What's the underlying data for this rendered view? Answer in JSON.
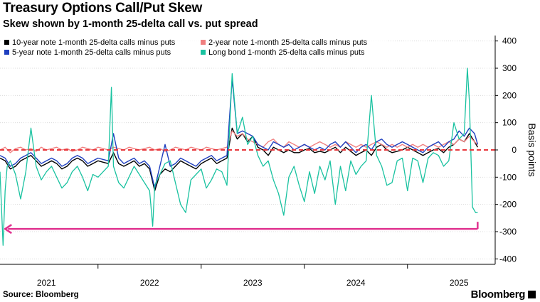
{
  "header": {
    "title": "Treasury Options Call/Put Skew",
    "subtitle": "Skew shown by 1-month 25-delta call vs. put spread"
  },
  "footer": {
    "source": "Source: Bloomberg",
    "brand": "Bloomberg"
  },
  "chart_data": {
    "type": "line",
    "title": "Treasury Options Call/Put Skew",
    "subtitle": "Skew shown by 1-month 25-delta call vs. put spread",
    "xlabel": "",
    "ylabel": "Basis points",
    "xlim": [
      2020.55,
      2025.35
    ],
    "ylim": [
      -420,
      420
    ],
    "y_ticks": [
      400,
      300,
      200,
      100,
      0,
      -100,
      -200,
      -300,
      -400
    ],
    "x_ticks": [
      {
        "label": "2021",
        "value": 2021.0
      },
      {
        "label": "2022",
        "value": 2022.0
      },
      {
        "label": "2023",
        "value": 2023.0
      },
      {
        "label": "2024",
        "value": 2024.0
      },
      {
        "label": "2025",
        "value": 2025.0
      }
    ],
    "x_boundaries": [
      2021.5,
      2022.5,
      2023.5,
      2024.5
    ],
    "zero_line": {
      "y": 0,
      "color": "#e8383d",
      "style": "dashed"
    },
    "annotation_arrow": {
      "y": -290,
      "x_start": 2025.18,
      "x_end": 2020.6,
      "color": "#e0318f"
    },
    "legend_position": "top-left",
    "colors": {
      "ten_year": "#000000",
      "two_year": "#f08080",
      "five_year": "#1f3fbf",
      "long_bond": "#19c2a0"
    },
    "series": [
      {
        "name": "10-year note 1-month 25-delta calls minus puts",
        "key": "ten_year",
        "x": [
          2020.55,
          2020.6,
          2020.65,
          2020.7,
          2020.75,
          2020.8,
          2020.85,
          2020.9,
          2020.95,
          2021.0,
          2021.05,
          2021.1,
          2021.15,
          2021.2,
          2021.25,
          2021.3,
          2021.35,
          2021.4,
          2021.45,
          2021.5,
          2021.55,
          2021.6,
          2021.65,
          2021.7,
          2021.75,
          2021.8,
          2021.85,
          2021.9,
          2021.95,
          2022.0,
          2022.05,
          2022.1,
          2022.15,
          2022.2,
          2022.25,
          2022.3,
          2022.35,
          2022.4,
          2022.45,
          2022.5,
          2022.55,
          2022.6,
          2022.65,
          2022.7,
          2022.75,
          2022.8,
          2022.85,
          2022.9,
          2022.95,
          2023.0,
          2023.05,
          2023.1,
          2023.15,
          2023.2,
          2023.25,
          2023.3,
          2023.35,
          2023.4,
          2023.45,
          2023.5,
          2023.55,
          2023.6,
          2023.65,
          2023.7,
          2023.75,
          2023.8,
          2023.85,
          2023.9,
          2023.95,
          2024.0,
          2024.05,
          2024.1,
          2024.15,
          2024.2,
          2024.25,
          2024.3,
          2024.35,
          2024.4,
          2024.45,
          2024.5,
          2024.55,
          2024.6,
          2024.65,
          2024.7,
          2024.75,
          2024.8,
          2024.85,
          2024.9,
          2024.95,
          2025.0,
          2025.05,
          2025.1,
          2025.15,
          2025.18
        ],
        "y": [
          -30,
          -40,
          -70,
          -60,
          -40,
          -30,
          -20,
          -40,
          -60,
          -50,
          -40,
          -50,
          -70,
          -60,
          -40,
          -30,
          -40,
          -60,
          -50,
          -40,
          -45,
          -50,
          -10,
          -50,
          -60,
          -50,
          -40,
          -60,
          -50,
          -70,
          -150,
          -90,
          -70,
          -80,
          -60,
          -40,
          -50,
          -60,
          -70,
          -50,
          -40,
          -30,
          -50,
          -40,
          -30,
          80,
          40,
          60,
          30,
          50,
          10,
          0,
          -20,
          10,
          0,
          -10,
          0,
          -10,
          -10,
          0,
          5,
          -10,
          -5,
          -10,
          0,
          10,
          -10,
          10,
          -5,
          -20,
          -10,
          0,
          -20,
          10,
          20,
          0,
          -10,
          -5,
          0,
          10,
          0,
          -10,
          -20,
          -10,
          0,
          5,
          -10,
          10,
          20,
          40,
          30,
          60,
          30,
          10
        ]
      },
      {
        "name": "2-year note 1-month 25-delta calls minus puts",
        "key": "two_year",
        "x": [
          2020.55,
          2020.6,
          2020.65,
          2020.7,
          2020.75,
          2020.8,
          2020.85,
          2020.9,
          2020.95,
          2021.0,
          2021.05,
          2021.1,
          2021.15,
          2021.2,
          2021.25,
          2021.3,
          2021.35,
          2021.4,
          2021.45,
          2021.5,
          2021.55,
          2021.6,
          2021.65,
          2021.7,
          2021.75,
          2021.8,
          2021.85,
          2021.9,
          2021.95,
          2022.0,
          2022.05,
          2022.1,
          2022.15,
          2022.2,
          2022.25,
          2022.3,
          2022.35,
          2022.4,
          2022.45,
          2022.5,
          2022.55,
          2022.6,
          2022.65,
          2022.7,
          2022.75,
          2022.8,
          2022.85,
          2022.9,
          2022.95,
          2023.0,
          2023.05,
          2023.1,
          2023.15,
          2023.2,
          2023.25,
          2023.3,
          2023.35,
          2023.4,
          2023.45,
          2023.5,
          2023.55,
          2023.6,
          2023.65,
          2023.7,
          2023.75,
          2023.8,
          2023.85,
          2023.9,
          2023.95,
          2024.0,
          2024.05,
          2024.1,
          2024.15,
          2024.2,
          2024.25,
          2024.3,
          2024.35,
          2024.4,
          2024.45,
          2024.5,
          2024.55,
          2024.6,
          2024.65,
          2024.7,
          2024.75,
          2024.8,
          2024.85,
          2024.9,
          2024.95,
          2025.0,
          2025.05,
          2025.1,
          2025.15,
          2025.18
        ],
        "y": [
          0,
          10,
          -10,
          5,
          10,
          0,
          5,
          -5,
          10,
          0,
          5,
          10,
          0,
          5,
          -5,
          0,
          10,
          5,
          0,
          10,
          5,
          0,
          10,
          5,
          0,
          10,
          5,
          0,
          5,
          10,
          0,
          5,
          -5,
          0,
          10,
          5,
          0,
          10,
          5,
          0,
          10,
          5,
          0,
          5,
          10,
          70,
          50,
          60,
          40,
          30,
          20,
          10,
          30,
          40,
          20,
          10,
          30,
          20,
          10,
          20,
          10,
          20,
          30,
          20,
          10,
          20,
          10,
          30,
          20,
          10,
          20,
          10,
          20,
          30,
          20,
          10,
          20,
          10,
          20,
          10,
          20,
          10,
          20,
          10,
          20,
          10,
          20,
          30,
          20,
          40,
          30,
          50,
          30,
          20
        ]
      },
      {
        "name": "5-year note 1-month 25-delta calls minus puts",
        "key": "five_year",
        "x": [
          2020.55,
          2020.6,
          2020.65,
          2020.7,
          2020.75,
          2020.8,
          2020.85,
          2020.9,
          2020.95,
          2021.0,
          2021.05,
          2021.1,
          2021.15,
          2021.2,
          2021.25,
          2021.3,
          2021.35,
          2021.4,
          2021.45,
          2021.5,
          2021.55,
          2021.6,
          2021.65,
          2021.7,
          2021.75,
          2021.8,
          2021.85,
          2021.9,
          2021.95,
          2022.0,
          2022.05,
          2022.1,
          2022.15,
          2022.2,
          2022.25,
          2022.3,
          2022.35,
          2022.4,
          2022.45,
          2022.5,
          2022.55,
          2022.6,
          2022.65,
          2022.7,
          2022.75,
          2022.8,
          2022.85,
          2022.9,
          2022.95,
          2023.0,
          2023.05,
          2023.1,
          2023.15,
          2023.2,
          2023.25,
          2023.3,
          2023.35,
          2023.4,
          2023.45,
          2023.5,
          2023.55,
          2023.6,
          2023.65,
          2023.7,
          2023.75,
          2023.8,
          2023.85,
          2023.9,
          2023.95,
          2024.0,
          2024.05,
          2024.1,
          2024.15,
          2024.2,
          2024.25,
          2024.3,
          2024.35,
          2024.4,
          2024.45,
          2024.5,
          2024.55,
          2024.6,
          2024.65,
          2024.7,
          2024.75,
          2024.8,
          2024.85,
          2024.9,
          2024.95,
          2025.0,
          2025.05,
          2025.1,
          2025.15,
          2025.18
        ],
        "y": [
          -20,
          -30,
          -60,
          -50,
          -30,
          -20,
          -10,
          -30,
          -50,
          -40,
          -30,
          -40,
          -60,
          -50,
          -30,
          -20,
          -30,
          -50,
          -40,
          -30,
          -35,
          -40,
          60,
          -30,
          -50,
          -40,
          -30,
          -50,
          -40,
          -60,
          -140,
          -60,
          20,
          -60,
          -50,
          -30,
          -40,
          -50,
          -60,
          -40,
          -30,
          -20,
          -40,
          -30,
          -20,
          260,
          60,
          70,
          60,
          50,
          20,
          10,
          0,
          30,
          20,
          10,
          20,
          0,
          10,
          20,
          10,
          0,
          10,
          0,
          20,
          30,
          10,
          30,
          10,
          -10,
          10,
          20,
          0,
          30,
          40,
          20,
          10,
          20,
          30,
          20,
          10,
          0,
          -10,
          10,
          20,
          30,
          10,
          30,
          40,
          70,
          50,
          80,
          60,
          20
        ]
      },
      {
        "name": "Long bond 1-month 25-delta calls minus puts",
        "key": "long_bond",
        "x": [
          2020.55,
          2020.58,
          2020.6,
          2020.62,
          2020.65,
          2020.7,
          2020.75,
          2020.8,
          2020.85,
          2020.9,
          2020.95,
          2021.0,
          2021.05,
          2021.1,
          2021.15,
          2021.2,
          2021.25,
          2021.3,
          2021.35,
          2021.4,
          2021.45,
          2021.5,
          2021.55,
          2021.6,
          2021.63,
          2021.65,
          2021.7,
          2021.75,
          2021.8,
          2021.85,
          2021.9,
          2021.95,
          2022.0,
          2022.03,
          2022.05,
          2022.1,
          2022.15,
          2022.2,
          2022.25,
          2022.3,
          2022.35,
          2022.4,
          2022.45,
          2022.5,
          2022.55,
          2022.6,
          2022.65,
          2022.7,
          2022.75,
          2022.8,
          2022.85,
          2022.9,
          2022.95,
          2023.0,
          2023.05,
          2023.1,
          2023.15,
          2023.2,
          2023.25,
          2023.3,
          2023.35,
          2023.4,
          2023.45,
          2023.5,
          2023.55,
          2023.6,
          2023.65,
          2023.7,
          2023.75,
          2023.8,
          2023.85,
          2023.9,
          2023.95,
          2024.0,
          2024.05,
          2024.1,
          2024.15,
          2024.2,
          2024.25,
          2024.3,
          2024.35,
          2024.4,
          2024.45,
          2024.5,
          2024.55,
          2024.6,
          2024.65,
          2024.7,
          2024.75,
          2024.8,
          2024.85,
          2024.9,
          2024.95,
          2025.0,
          2025.05,
          2025.08,
          2025.1,
          2025.13,
          2025.16,
          2025.18
        ],
        "y": [
          -80,
          -350,
          -150,
          -60,
          -40,
          -90,
          -180,
          -80,
          80,
          -60,
          -110,
          -80,
          -60,
          -100,
          -140,
          -120,
          -80,
          -60,
          -100,
          -150,
          -90,
          -100,
          -80,
          -60,
          230,
          -60,
          -120,
          -140,
          -100,
          -60,
          -90,
          -120,
          -150,
          -280,
          -130,
          -90,
          -50,
          -40,
          -120,
          -200,
          -230,
          -110,
          -90,
          -70,
          -140,
          -110,
          -70,
          -80,
          -130,
          280,
          60,
          120,
          20,
          50,
          -20,
          -60,
          -40,
          -110,
          -160,
          -240,
          -100,
          -60,
          -130,
          -190,
          -80,
          -160,
          -60,
          -110,
          -40,
          -200,
          -60,
          -150,
          -40,
          -90,
          -60,
          -40,
          200,
          -20,
          -60,
          -130,
          -120,
          -40,
          -30,
          -150,
          -30,
          -40,
          -120,
          -30,
          -10,
          -20,
          -60,
          -40,
          100,
          40,
          60,
          300,
          180,
          -210,
          -230,
          -230
        ]
      }
    ]
  }
}
